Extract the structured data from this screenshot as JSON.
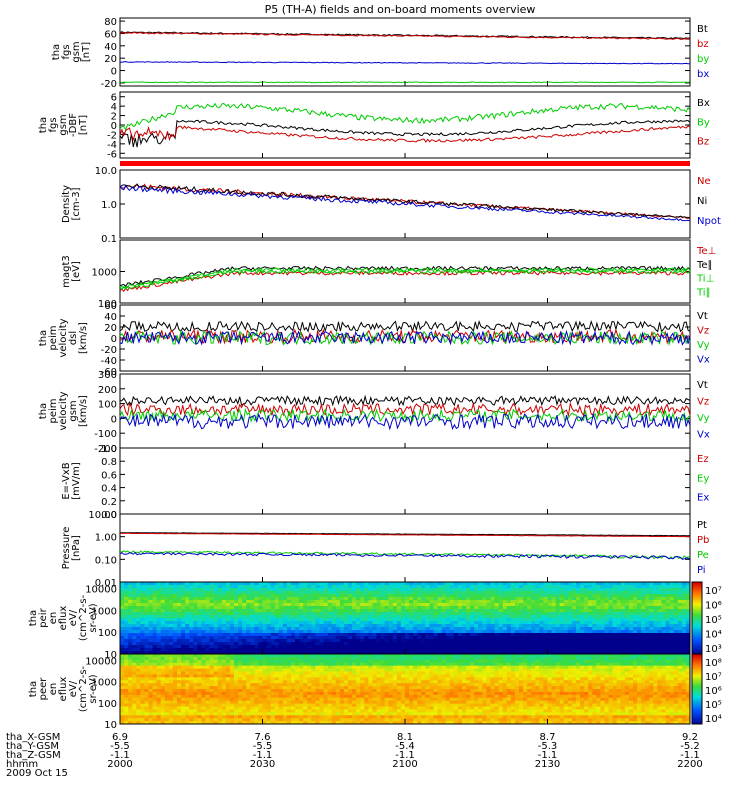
{
  "title": "P5 (TH-A) fields and on-board moments overview",
  "colors": {
    "black": "#000000",
    "red": "#cc0000",
    "green": "#00cc00",
    "blue": "#0000cc"
  },
  "footer": {
    "rows": [
      {
        "label": "tha_X-GSM",
        "values": [
          "6.9",
          "7.6",
          "8.1",
          "8.7",
          "9.2"
        ]
      },
      {
        "label": "tha_Y-GSM",
        "values": [
          "-5.5",
          "-5.5",
          "-5.4",
          "-5.3",
          "-5.2"
        ]
      },
      {
        "label": "tha_Z-GSM",
        "values": [
          "-1.1",
          "-1.1",
          "-1.1",
          "-1.1",
          "-1.1"
        ]
      },
      {
        "label": "hhmm",
        "values": [
          "2000",
          "2030",
          "2100",
          "2130",
          "2200"
        ]
      }
    ],
    "date": "2009 Oct 15"
  },
  "chart_data": [
    {
      "id": "fgs",
      "type": "line",
      "ylabel": [
        "tha",
        "fgs",
        "gsm",
        "[nT]"
      ],
      "ticks": [
        "80",
        "60",
        "40",
        "20",
        "0",
        "-20"
      ],
      "ylim": [
        -25,
        85
      ],
      "series": [
        {
          "name": "Bt",
          "color": "#000000",
          "start": 62,
          "end": 52,
          "noise": 1
        },
        {
          "name": "bz",
          "color": "#cc0000",
          "start": 61,
          "end": 51,
          "noise": 1
        },
        {
          "name": "by",
          "color": "#00cc00",
          "start": -19,
          "end": -19,
          "noise": 0.6
        },
        {
          "name": "bx",
          "color": "#0000cc",
          "start": 14,
          "end": 11,
          "noise": 0.6
        }
      ]
    },
    {
      "id": "fgs_dlp",
      "type": "line",
      "ylabel": [
        "tha",
        "fgs",
        "gsm",
        "-DBF",
        "[nT]"
      ],
      "ticks": [
        "6",
        "4",
        "2",
        "0",
        "-2",
        "-4",
        "-6"
      ],
      "ylim": [
        -7,
        7
      ],
      "series": [
        {
          "name": "Bx",
          "color": "#000000"
        },
        {
          "name": "By",
          "color": "#00cc00"
        },
        {
          "name": "Bz",
          "color": "#cc0000"
        }
      ]
    },
    {
      "id": "density",
      "type": "line",
      "log": true,
      "ylabel": [
        "Density",
        "[cm-3]"
      ],
      "ticks": [
        "10.0",
        "1.0",
        "0.1"
      ],
      "ylim": [
        0.1,
        10
      ],
      "series": [
        {
          "name": "Ne",
          "color": "#cc0000"
        },
        {
          "name": "Ni",
          "color": "#000000"
        },
        {
          "name": "Npot",
          "color": "#0000cc"
        }
      ]
    },
    {
      "id": "temp",
      "type": "line",
      "log": true,
      "ylabel": [
        "magt3",
        "[eV]"
      ],
      "ticks": [
        "1000",
        "100"
      ],
      "ylim": [
        100,
        10000
      ],
      "series": [
        {
          "name": "Te⊥",
          "color": "#cc0000"
        },
        {
          "name": "Te∥",
          "color": "#000000"
        },
        {
          "name": "Ti⊥",
          "color": "#00cc00"
        },
        {
          "name": "Ti∥",
          "color": "#00cc00"
        }
      ]
    },
    {
      "id": "vel_dsl",
      "type": "line",
      "ylabel": [
        "tha",
        "peim",
        "velocity",
        "dsl",
        "[km/s]"
      ],
      "ticks": [
        "60",
        "40",
        "20",
        "0",
        "-20",
        "-40",
        "-60"
      ],
      "ylim": [
        -60,
        60
      ],
      "series": [
        {
          "name": "Vt",
          "color": "#000000"
        },
        {
          "name": "Vz",
          "color": "#cc0000"
        },
        {
          "name": "Vy",
          "color": "#00cc00"
        },
        {
          "name": "Vx",
          "color": "#0000cc"
        }
      ]
    },
    {
      "id": "vel_gsm",
      "type": "line",
      "ylabel": [
        "tha",
        "peim",
        "velocity",
        "gsm",
        "[km/s]"
      ],
      "ticks": [
        "300",
        "200",
        "100",
        "0",
        "-100",
        "-200"
      ],
      "ylim": [
        -200,
        300
      ],
      "series": [
        {
          "name": "Vt",
          "color": "#000000"
        },
        {
          "name": "Vz",
          "color": "#cc0000"
        },
        {
          "name": "Vy",
          "color": "#00cc00"
        },
        {
          "name": "Vx",
          "color": "#0000cc"
        }
      ]
    },
    {
      "id": "efield",
      "type": "line",
      "ylabel": [
        "E=-VxB",
        "[mV/m]"
      ],
      "ticks": [
        "1.0",
        "0.8",
        "0.6",
        "0.4",
        "0.2",
        "0.0"
      ],
      "ylim": [
        0,
        1
      ],
      "series": [
        {
          "name": "Ez",
          "color": "#cc0000"
        },
        {
          "name": "Ey",
          "color": "#00cc00"
        },
        {
          "name": "Ex",
          "color": "#0000cc"
        }
      ]
    },
    {
      "id": "pressure",
      "type": "line",
      "log": true,
      "ylabel": [
        "Pressure",
        "[nPa]"
      ],
      "ticks": [
        "10.00",
        "1.00",
        "0.10",
        "0.01"
      ],
      "ylim": [
        0.01,
        10
      ],
      "series": [
        {
          "name": "Pt",
          "color": "#000000",
          "start": 1.5,
          "end": 1.1
        },
        {
          "name": "Pb",
          "color": "#cc0000",
          "start": 1.4,
          "end": 1.0
        },
        {
          "name": "Pe",
          "color": "#00cc00",
          "start": 0.22,
          "end": 0.12
        },
        {
          "name": "Pi",
          "color": "#0000cc",
          "start": 0.18,
          "end": 0.12
        }
      ]
    },
    {
      "id": "peir_spec",
      "type": "heatmap",
      "ylabel": [
        "tha",
        "peir",
        "en",
        "eflux",
        "eV/",
        "(cm^2-s-",
        "sr-eV)"
      ],
      "ticks": [
        "10000",
        "1000",
        "100",
        "10"
      ],
      "ylim": [
        10,
        20000
      ],
      "colorbar": [
        "10⁷",
        "10⁶",
        "10⁵",
        "10⁴",
        "10³"
      ]
    },
    {
      "id": "peer_spec",
      "type": "heatmap",
      "ylabel": [
        "tha",
        "peer",
        "en",
        "eflux",
        "eV/",
        "(cm^2-s-",
        "sr-eV)"
      ],
      "ticks": [
        "10000",
        "1000",
        "100",
        "10"
      ],
      "ylim": [
        10,
        20000
      ],
      "colorbar": [
        "10⁸",
        "10⁷",
        "10⁶",
        "10⁵",
        "10⁴"
      ]
    }
  ]
}
